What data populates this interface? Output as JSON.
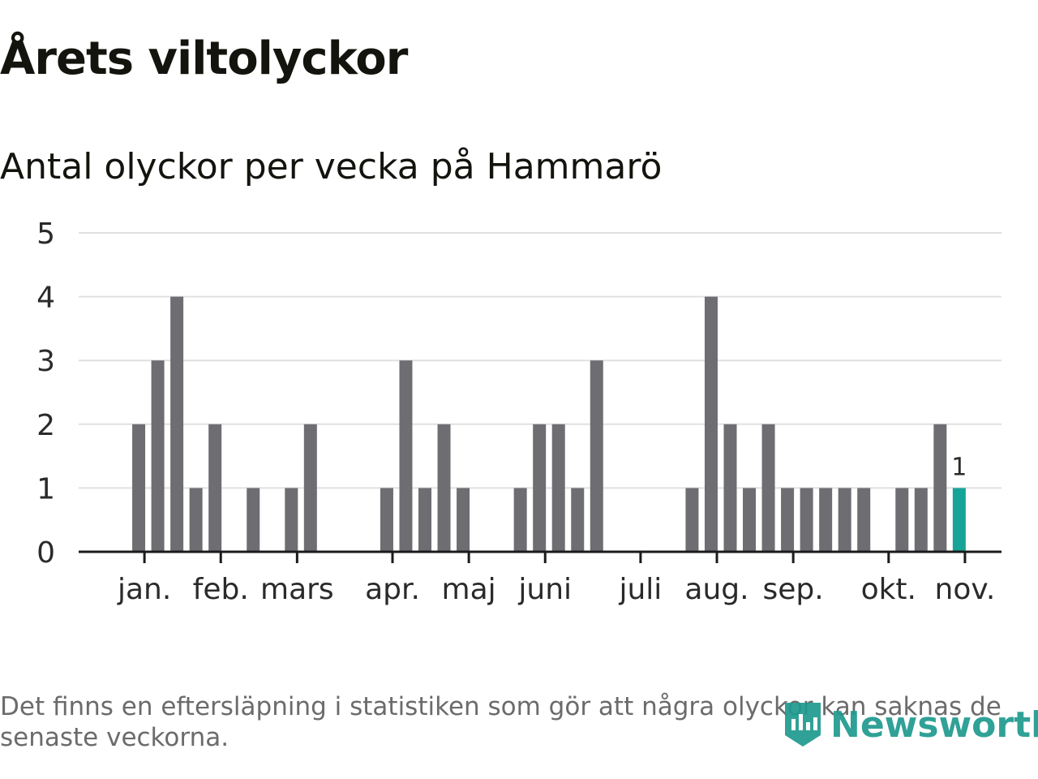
{
  "title": "Årets viltolyckor",
  "subtitle": "Antal olyckor per vecka på Hammarö",
  "footnote": "Det finns en eftersläpning i statistiken som gör att några olyckor kan saknas de senaste veckorna.",
  "brand": {
    "name": "Newsworthy",
    "icon": "newsworthy-logo-icon"
  },
  "colors": {
    "bar": "#6e6d72",
    "highlight": "#17a398",
    "grid": "#e0e0e0",
    "axis": "#1b1b1b",
    "text": "#1b1b1b"
  },
  "chart_data": {
    "type": "bar",
    "title": "Antal olyckor per vecka på Hammarö",
    "xlabel": "",
    "ylabel": "",
    "ylim": [
      0,
      5
    ],
    "yticks": [
      "0",
      "1",
      "2",
      "3",
      "4",
      "5"
    ],
    "weeks": [
      1,
      2,
      3,
      4,
      5,
      6,
      7,
      8,
      9,
      10,
      11,
      12,
      13,
      14,
      15,
      16,
      17,
      18,
      19,
      20,
      21,
      22,
      23,
      24,
      25,
      26,
      27,
      28,
      29,
      30,
      31,
      32,
      33,
      34,
      35,
      36,
      37,
      38,
      39,
      40,
      41,
      42,
      43,
      44,
      45,
      46
    ],
    "values": [
      0,
      0,
      2,
      3,
      4,
      1,
      2,
      0,
      1,
      0,
      1,
      2,
      0,
      0,
      0,
      1,
      3,
      1,
      2,
      1,
      0,
      0,
      1,
      2,
      2,
      1,
      3,
      0,
      0,
      0,
      0,
      1,
      4,
      2,
      1,
      2,
      1,
      1,
      1,
      1,
      1,
      0,
      1,
      1,
      2,
      1
    ],
    "highlight_index": 45,
    "highlight_label": "1",
    "month_ticks": [
      {
        "label": "jan.",
        "week": 3.3
      },
      {
        "label": "feb.",
        "week": 7.3
      },
      {
        "label": "mars",
        "week": 11.3
      },
      {
        "label": "apr.",
        "week": 16.3
      },
      {
        "label": "maj",
        "week": 20.3
      },
      {
        "label": "juni",
        "week": 24.3
      },
      {
        "label": "juli",
        "week": 29.3
      },
      {
        "label": "aug.",
        "week": 33.3
      },
      {
        "label": "sep.",
        "week": 37.3
      },
      {
        "label": "okt.",
        "week": 42.3
      },
      {
        "label": "nov.",
        "week": 46.3
      }
    ]
  }
}
